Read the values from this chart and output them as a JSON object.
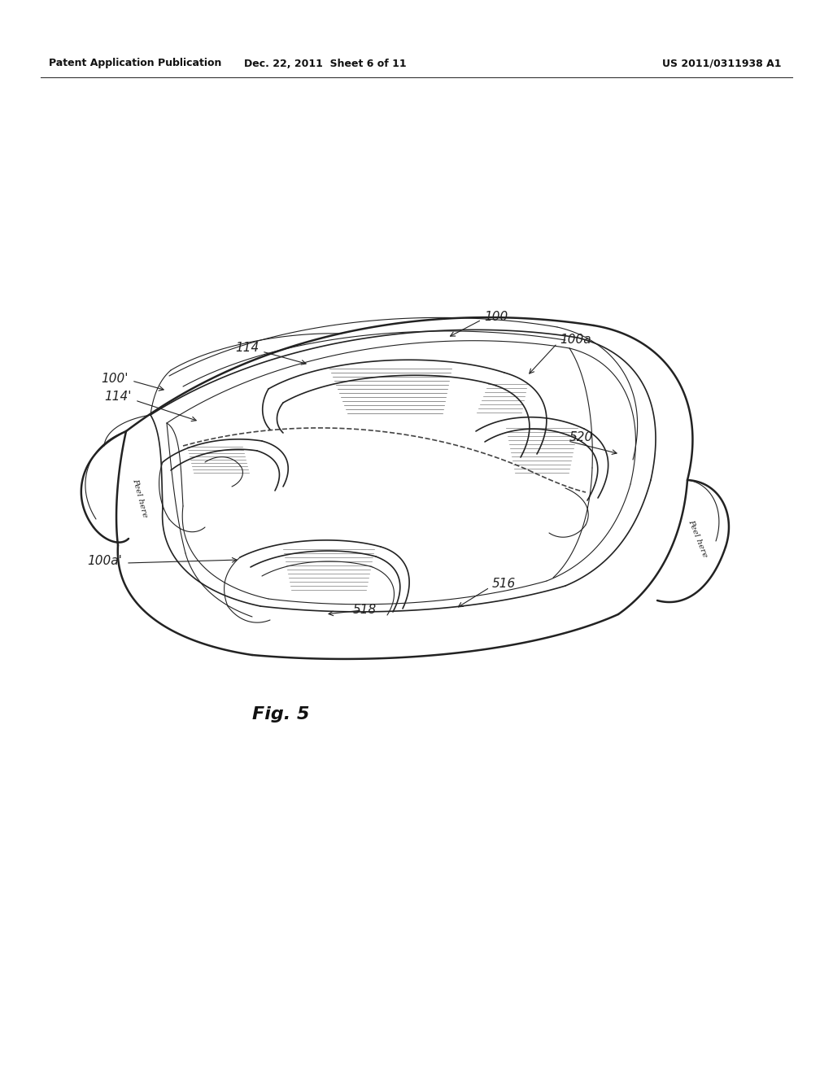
{
  "background_color": "#ffffff",
  "header_left": "Patent Application Publication",
  "header_center": "Dec. 22, 2011  Sheet 6 of 11",
  "header_right": "US 2011/0311938 A1",
  "figure_label": "Fig. 5",
  "line_color": "#222222"
}
